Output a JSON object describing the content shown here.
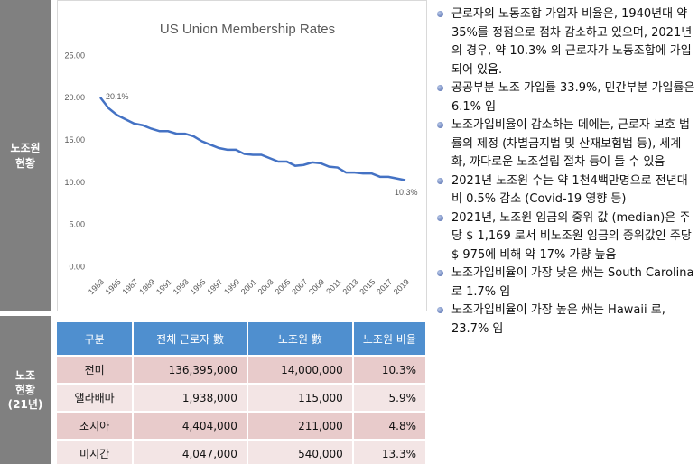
{
  "chart_data": {
    "type": "line",
    "title": "US Union Membership Rates",
    "x": [
      1983,
      1984,
      1985,
      1986,
      1987,
      1988,
      1989,
      1990,
      1991,
      1992,
      1993,
      1994,
      1995,
      1996,
      1997,
      1998,
      1999,
      2000,
      2001,
      2002,
      2003,
      2004,
      2005,
      2006,
      2007,
      2008,
      2009,
      2010,
      2011,
      2012,
      2013,
      2014,
      2015,
      2016,
      2017,
      2018,
      2019
    ],
    "values": [
      20.1,
      18.8,
      18.0,
      17.5,
      17.0,
      16.8,
      16.4,
      16.1,
      16.1,
      15.8,
      15.8,
      15.5,
      14.9,
      14.5,
      14.1,
      13.9,
      13.9,
      13.4,
      13.3,
      13.3,
      12.9,
      12.5,
      12.5,
      12.0,
      12.1,
      12.4,
      12.3,
      11.9,
      11.8,
      11.2,
      11.2,
      11.1,
      11.1,
      10.7,
      10.7,
      10.5,
      10.3
    ],
    "value_labels": [
      "20.1%",
      null,
      null,
      null,
      null,
      null,
      null,
      null,
      null,
      null,
      null,
      null,
      null,
      null,
      null,
      null,
      null,
      null,
      null,
      null,
      null,
      null,
      null,
      null,
      null,
      null,
      null,
      null,
      null,
      null,
      null,
      null,
      null,
      null,
      null,
      null,
      "10.3%"
    ],
    "color": "#4472c4",
    "xlim": [
      1983,
      2019
    ],
    "xticks": [
      1983,
      1985,
      1987,
      1989,
      1991,
      1993,
      1995,
      1997,
      1999,
      2001,
      2003,
      2005,
      2007,
      2009,
      2011,
      2013,
      2015,
      2017,
      2019
    ],
    "ylim": [
      0,
      25
    ],
    "yticks": [
      {
        "value": 0,
        "label": "0.00"
      },
      {
        "value": 5,
        "label": "5.00"
      },
      {
        "value": 10,
        "label": "10.00"
      },
      {
        "value": 15,
        "label": "15.00"
      },
      {
        "value": 20,
        "label": "20.00"
      },
      {
        "value": 25,
        "label": "25.00"
      }
    ],
    "grid": false
  },
  "sidebar": {
    "top": "노조원\n현황",
    "bottom": "노조\n현황\n(21년)"
  },
  "table": {
    "header": [
      "구분",
      "전체 근로자 數",
      "노조원 數",
      "노조원 비율"
    ],
    "rows": [
      [
        "전미",
        "136,395,000",
        "14,000,000",
        "10.3%"
      ],
      [
        "앨라배마",
        "1,938,000",
        "115,000",
        "5.9%"
      ],
      [
        "조지아",
        "4,404,000",
        "211,000",
        "4.8%"
      ],
      [
        "미시간",
        "4,047,000",
        "540,000",
        "13.3%"
      ]
    ]
  },
  "bullets": [
    "근로자의 노동조합 가입자 비율은, 1940년대 약 35%를 정점으로 점차 감소하고 있으며, 2021년의 경우, 약 10.3% 의 근로자가 노동조합에 가입되어 있음.",
    "공공부분 노조 가입률 33.9%, 민간부분 가입률은 6.1% 임",
    "노조가입비율이 감소하는 데에는, 근로자 보호 법률의 제정 (차별금지법 및 산재보험법 등), 세계화, 까다로운 노조설립 절차 등이 들 수 있음",
    "2021년 노조원 수는 약 1천4백만명으로 전년대비 0.5% 감소 (Covid-19 영향 등)",
    "2021년, 노조원 임금의 중위 값 (median)은 주당 $ 1,169 로서 비노조원 임금의 중위값인 주당 $ 975에 비해 약 17% 가량 높음",
    "노조가입비율이 가장 낮은 州는 South Carolina 로 1.7% 임",
    "노조가입비율이 가장 높은 州는 Hawaii 로,  23.7% 임"
  ]
}
